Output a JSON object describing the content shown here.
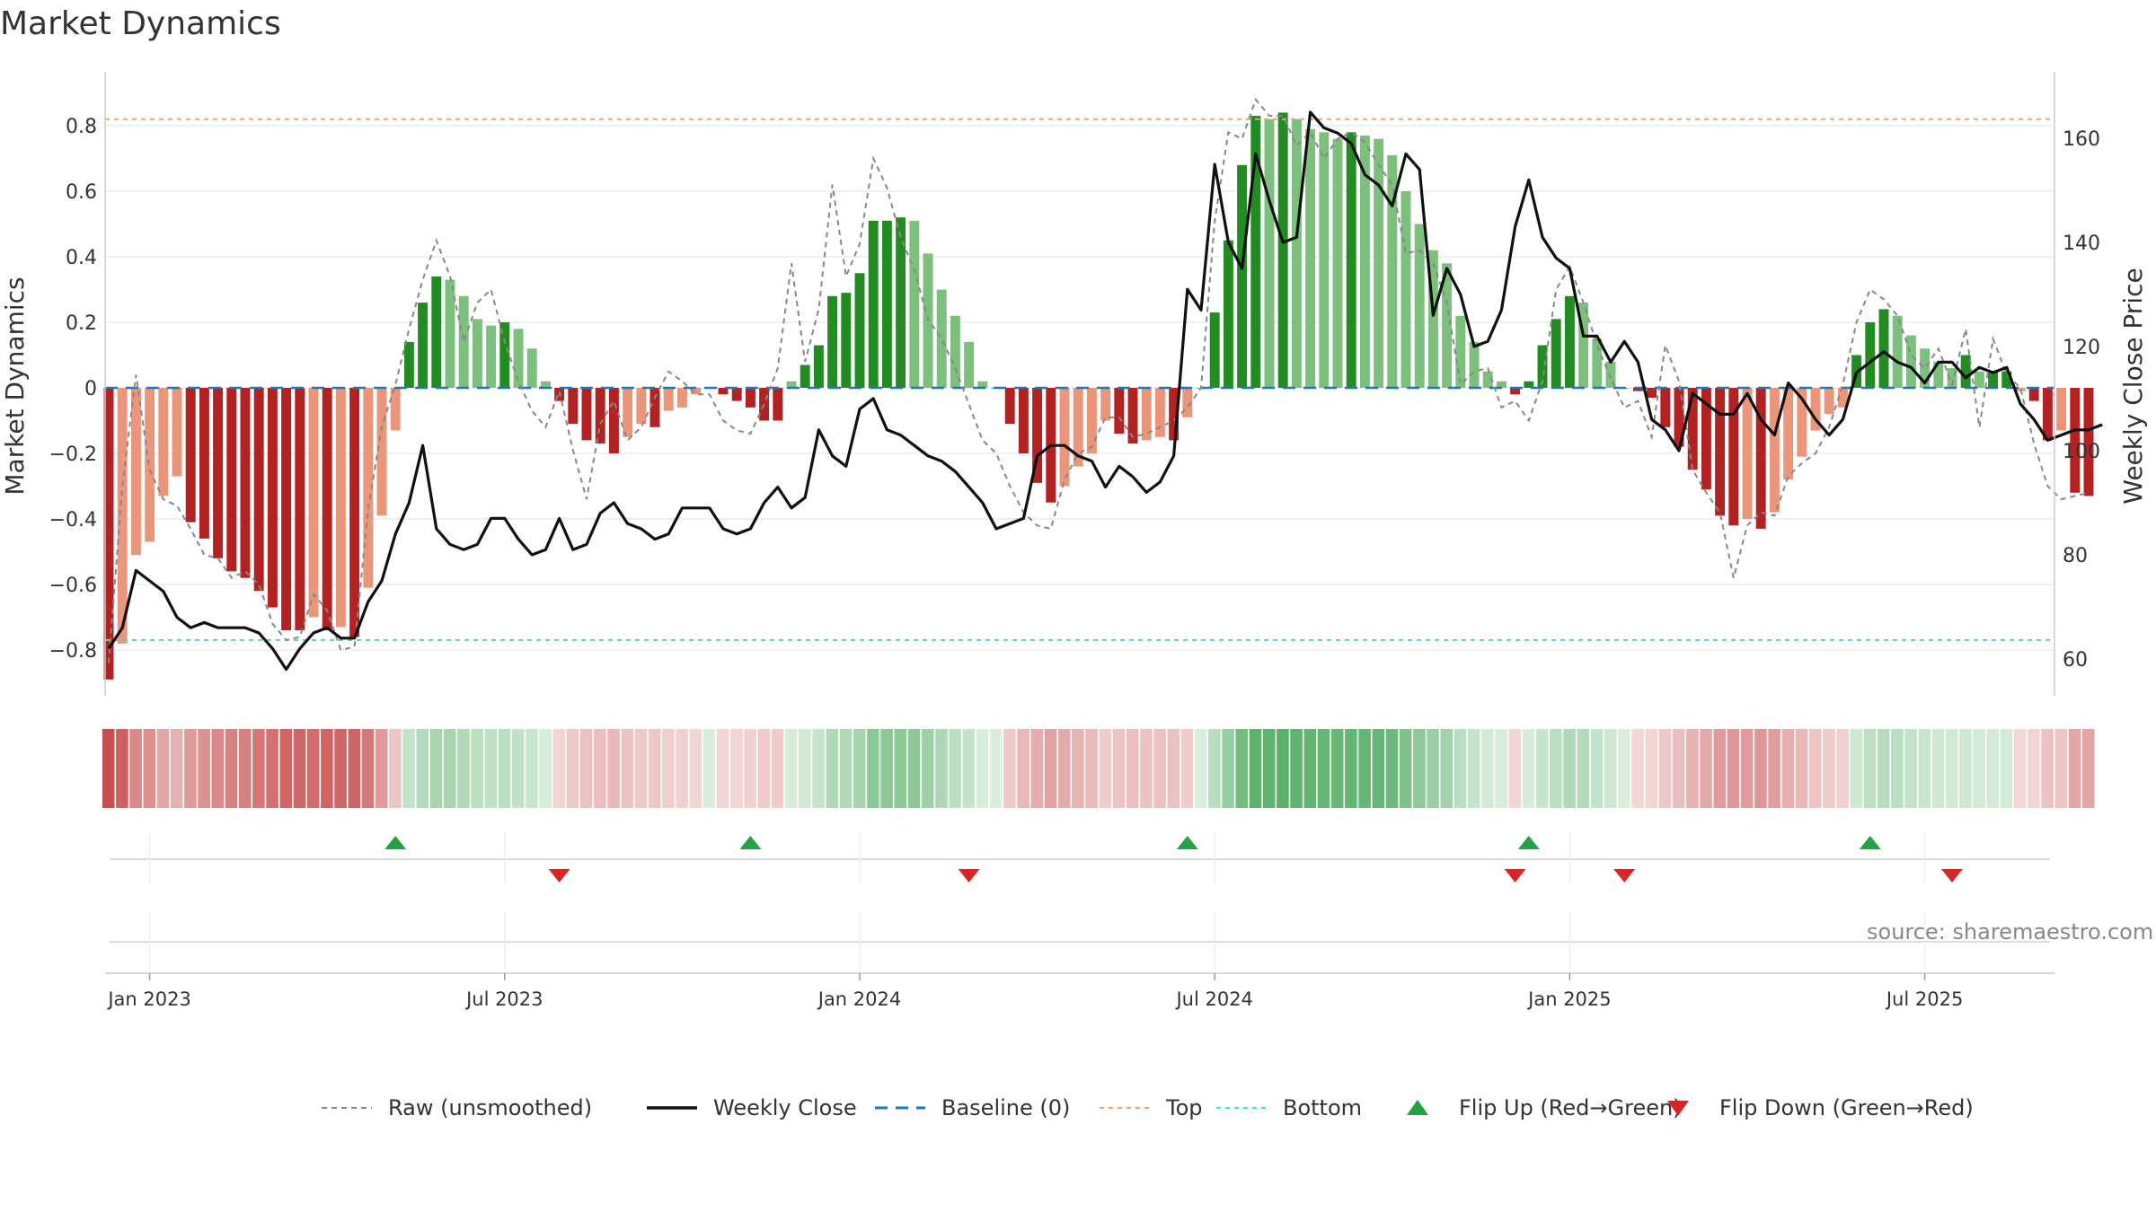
{
  "chart_data": {
    "type": "bar",
    "title": "Market Dynamics",
    "ylabel": "Market Dynamics",
    "y2label": "Weekly Close Price",
    "ylim": [
      -0.95,
      0.95
    ],
    "y2lim": [
      55,
      175
    ],
    "yticks": [
      -0.8,
      -0.6,
      -0.4,
      -0.2,
      0,
      0.2,
      0.4,
      0.6,
      0.8
    ],
    "yticks_text": [
      "−0.8",
      "−0.6",
      "−0.4",
      "−0.2",
      "0",
      "0.2",
      "0.4",
      "0.6",
      "0.8"
    ],
    "y2ticks": [
      60,
      80,
      100,
      120,
      140,
      160
    ],
    "y2ticks_text": [
      "60",
      "80",
      "100",
      "120",
      "140",
      "160"
    ],
    "xticks": [
      {
        "week": 3,
        "label": "Jan 2023"
      },
      {
        "week": 29,
        "label": "Jul 2023"
      },
      {
        "week": 55,
        "label": "Jan 2024"
      },
      {
        "week": 81,
        "label": "Jul 2024"
      },
      {
        "week": 107,
        "label": "Jan 2025"
      },
      {
        "week": 133,
        "label": "Jul 2025"
      }
    ],
    "x_start": "2022-12-12",
    "x_interval": "weekly",
    "top_line": 0.82,
    "bottom_line": -0.77,
    "baseline": 0,
    "grid": true,
    "legend_position": "bottom",
    "colors": {
      "strong_green": "#228b22",
      "light_green": "#7dbf7d",
      "strong_red": "#b22222",
      "light_red": "#e9967a",
      "close": "#111111",
      "raw": "#888888",
      "baseline": "#1f77b4",
      "top": "#f4a460",
      "bottom": "#40e0d0",
      "flip_up": "#22a244",
      "flip_down": "#d62728"
    },
    "series": [
      {
        "name": "Market Dynamics",
        "values": [
          -0.89,
          -0.78,
          -0.51,
          -0.47,
          -0.33,
          -0.27,
          -0.41,
          -0.46,
          -0.52,
          -0.56,
          -0.58,
          -0.62,
          -0.67,
          -0.74,
          -0.74,
          -0.7,
          -0.74,
          -0.73,
          -0.76,
          -0.61,
          -0.39,
          -0.13,
          0.14,
          0.26,
          0.34,
          0.33,
          0.28,
          0.21,
          0.19,
          0.2,
          0.18,
          0.12,
          0.02,
          -0.04,
          -0.11,
          -0.16,
          -0.17,
          -0.2,
          -0.15,
          -0.11,
          -0.12,
          -0.07,
          -0.06,
          -0.02,
          0.0,
          -0.02,
          -0.04,
          -0.06,
          -0.1,
          -0.1,
          0.02,
          0.07,
          0.13,
          0.28,
          0.29,
          0.35,
          0.51,
          0.51,
          0.52,
          0.51,
          0.41,
          0.3,
          0.22,
          0.14,
          0.02,
          0.0,
          -0.11,
          -0.2,
          -0.29,
          -0.35,
          -0.3,
          -0.24,
          -0.2,
          -0.1,
          -0.14,
          -0.17,
          -0.16,
          -0.15,
          -0.16,
          -0.09,
          0.0,
          0.23,
          0.45,
          0.68,
          0.83,
          0.82,
          0.84,
          0.82,
          0.79,
          0.78,
          0.76,
          0.78,
          0.77,
          0.76,
          0.71,
          0.6,
          0.5,
          0.42,
          0.38,
          0.22,
          0.14,
          0.05,
          0.02,
          -0.02,
          0.02,
          0.13,
          0.21,
          0.28,
          0.26,
          0.15,
          0.08,
          0.0,
          -0.01,
          -0.03,
          -0.12,
          -0.18,
          -0.25,
          -0.31,
          -0.39,
          -0.42,
          -0.4,
          -0.43,
          -0.38,
          -0.28,
          -0.21,
          -0.13,
          -0.08,
          -0.06,
          0.1,
          0.2,
          0.24,
          0.22,
          0.16,
          0.12,
          0.08,
          0.06,
          0.1,
          0.05,
          0.05,
          0.05,
          -0.01,
          -0.04,
          -0.16,
          -0.13,
          -0.32,
          -0.33
        ]
      },
      {
        "name": "Raw (unsmoothed)",
        "values": [
          -0.84,
          -0.3,
          0.04,
          -0.25,
          -0.34,
          -0.36,
          -0.43,
          -0.51,
          -0.52,
          -0.58,
          -0.56,
          -0.6,
          -0.72,
          -0.77,
          -0.76,
          -0.63,
          -0.68,
          -0.8,
          -0.79,
          -0.37,
          -0.12,
          0.01,
          0.18,
          0.33,
          0.45,
          0.34,
          0.14,
          0.26,
          0.3,
          0.14,
          0.02,
          -0.07,
          -0.12,
          -0.01,
          -0.19,
          -0.34,
          -0.11,
          -0.04,
          -0.16,
          -0.12,
          -0.03,
          0.05,
          0.02,
          -0.02,
          -0.02,
          -0.1,
          -0.13,
          -0.14,
          -0.05,
          0.06,
          0.38,
          0.08,
          0.24,
          0.62,
          0.34,
          0.44,
          0.7,
          0.61,
          0.46,
          0.36,
          0.21,
          0.15,
          0.06,
          -0.05,
          -0.16,
          -0.2,
          -0.3,
          -0.38,
          -0.42,
          -0.43,
          -0.28,
          -0.2,
          -0.18,
          -0.09,
          -0.09,
          -0.15,
          -0.14,
          -0.12,
          -0.1,
          -0.06,
          0.0,
          0.51,
          0.78,
          0.76,
          0.88,
          0.83,
          0.83,
          0.74,
          0.78,
          0.7,
          0.76,
          0.78,
          0.75,
          0.68,
          0.62,
          0.41,
          0.42,
          0.38,
          0.26,
          0.01,
          0.05,
          0.06,
          -0.06,
          -0.04,
          -0.1,
          0.02,
          0.3,
          0.37,
          0.26,
          0.13,
          0.03,
          -0.06,
          -0.04,
          -0.15,
          0.13,
          0.02,
          -0.25,
          -0.32,
          -0.38,
          -0.58,
          -0.42,
          -0.38,
          -0.39,
          -0.27,
          -0.23,
          -0.2,
          -0.12,
          0.01,
          0.2,
          0.3,
          0.27,
          0.22,
          0.1,
          0.06,
          0.12,
          0.01,
          0.18,
          -0.12,
          0.15,
          0.04,
          0.0,
          -0.17,
          -0.3,
          -0.34,
          -0.33,
          -0.32
        ]
      },
      {
        "name": "Weekly Close",
        "axis": "right",
        "values": [
          62,
          66,
          77,
          75,
          73,
          68,
          66,
          67,
          66,
          66,
          66,
          65,
          62,
          58,
          62,
          65,
          66,
          64,
          64,
          71,
          75,
          84,
          90,
          101,
          85,
          82,
          81,
          82,
          87,
          87,
          83,
          80,
          81,
          87,
          81,
          82,
          88,
          90,
          86,
          85,
          83,
          84,
          89,
          89,
          89,
          85,
          84,
          85,
          90,
          93,
          89,
          91,
          104,
          99,
          97,
          108,
          110,
          104,
          103,
          101,
          99,
          98,
          96,
          93,
          90,
          85,
          86,
          87,
          99,
          101,
          101,
          99,
          98,
          93,
          97,
          95,
          92,
          94,
          99,
          131,
          127,
          155,
          140,
          135,
          157,
          148,
          140,
          141,
          165,
          162,
          161,
          159,
          153,
          151,
          147,
          157,
          154,
          126,
          135,
          130,
          120,
          121,
          127,
          143,
          152,
          141,
          137,
          135,
          122,
          122,
          117,
          121,
          117,
          106,
          104,
          100,
          111,
          109,
          107,
          107,
          111,
          106,
          103,
          113,
          110,
          106,
          103,
          106,
          115,
          117,
          119,
          117,
          116,
          113,
          117,
          117,
          114,
          116,
          115,
          116,
          109,
          106,
          102,
          103,
          104,
          104,
          105
        ]
      }
    ],
    "flip_up_weeks": [
      21,
      47,
      79,
      104,
      129
    ],
    "flip_down_weeks": [
      33,
      63,
      103,
      111,
      135
    ],
    "strip_label": "",
    "legend": [
      {
        "label": "Raw (unsmoothed)",
        "style": "dashed-gray"
      },
      {
        "label": "Weekly Close",
        "style": "solid-black"
      },
      {
        "label": "Baseline (0)",
        "style": "dashed-blue"
      },
      {
        "label": "Top",
        "style": "dotted-orange"
      },
      {
        "label": "Bottom",
        "style": "dotted-teal"
      },
      {
        "label": "Flip Up (Red→Green)",
        "style": "triangle-up-green"
      },
      {
        "label": "Flip Down (Green→Red)",
        "style": "triangle-down-red"
      }
    ],
    "source_text": "source: sharemaestro.com"
  }
}
